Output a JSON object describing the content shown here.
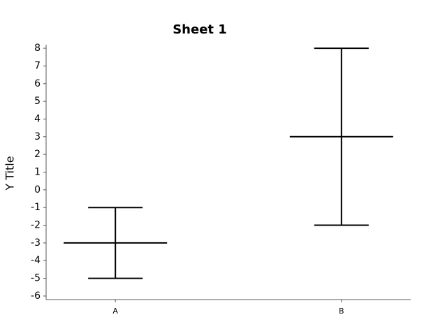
{
  "chart_data": {
    "type": "errorbar",
    "title": "Sheet 1",
    "y_label": "Y Title",
    "categories": [
      "A",
      "B"
    ],
    "values": [
      -3,
      3
    ],
    "errors": [
      2,
      5
    ],
    "color": "#000000",
    "ylim": [
      -6.2,
      8.2
    ],
    "yticks": [
      -6,
      -5,
      -4,
      -3,
      -2,
      -1,
      0,
      1,
      2,
      3,
      4,
      5,
      6,
      7,
      8
    ]
  }
}
